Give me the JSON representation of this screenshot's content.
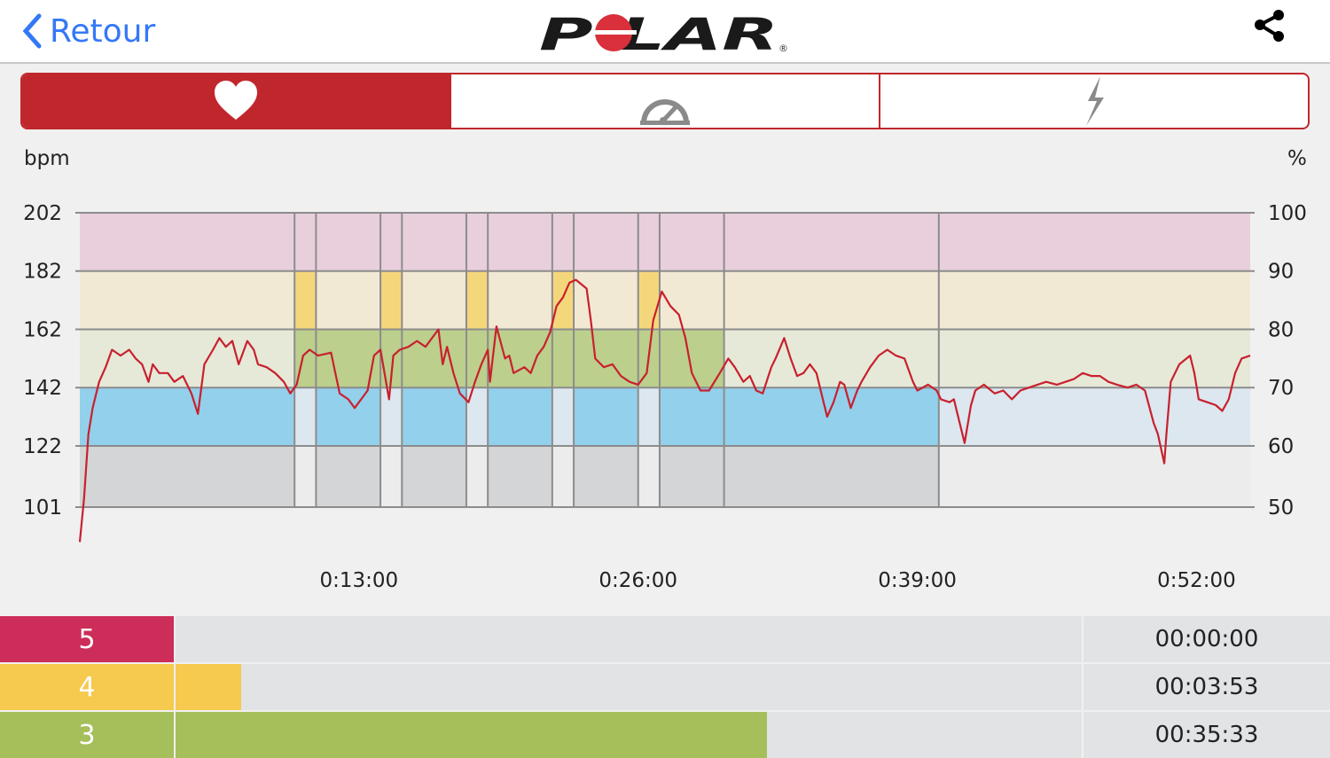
{
  "header": {
    "back_label": "Retour",
    "logo_text": "POLAR",
    "share_icon": "share-icon"
  },
  "tabs": [
    {
      "icon": "heart-icon",
      "active": true
    },
    {
      "icon": "speedometer-icon",
      "active": false
    },
    {
      "icon": "lightning-icon",
      "active": false
    }
  ],
  "colors": {
    "accent": "#c0272d",
    "back": "#3478f6",
    "line": "#c8202e"
  },
  "chart_data": {
    "type": "line",
    "ylabel_left": "bpm",
    "ylabel_right": "%",
    "yticks_left": [
      202,
      182,
      162,
      142,
      122,
      101
    ],
    "yticks_right": [
      100,
      90,
      80,
      70,
      60,
      50
    ],
    "ylim": [
      101,
      202
    ],
    "xlim": [
      0,
      54.5
    ],
    "xticks": [
      {
        "value": 13,
        "label": "0:13:00"
      },
      {
        "value": 26,
        "label": "0:26:00"
      },
      {
        "value": 39,
        "label": "0:39:00"
      },
      {
        "value": 52,
        "label": "0:52:00"
      }
    ],
    "zones": [
      {
        "zone": 1,
        "from": 101,
        "to": 122,
        "pale": "#ececec",
        "strong": "#d4d5d6"
      },
      {
        "zone": 2,
        "from": 122,
        "to": 142,
        "pale": "#dce7ef",
        "strong": "#93d0ec"
      },
      {
        "zone": 3,
        "from": 142,
        "to": 162,
        "pale": "#e6e9d8",
        "strong": "#bccf8c"
      },
      {
        "zone": 4,
        "from": 162,
        "to": 182,
        "pale": "#f2e9d4",
        "strong": "#f5d77b"
      },
      {
        "zone": 5,
        "from": 182,
        "to": 202,
        "pale": "#e8cfdb",
        "strong": "#e8cfdb"
      }
    ],
    "segments": [
      {
        "from": 0,
        "to": 10,
        "zones": [
          1,
          2
        ]
      },
      {
        "from": 10,
        "to": 11,
        "zones": [
          3,
          4
        ]
      },
      {
        "from": 11,
        "to": 14,
        "zones": [
          1,
          2,
          3
        ]
      },
      {
        "from": 14,
        "to": 15,
        "zones": [
          3,
          4
        ]
      },
      {
        "from": 15,
        "to": 18,
        "zones": [
          1,
          2,
          3
        ]
      },
      {
        "from": 18,
        "to": 19,
        "zones": [
          3,
          4
        ]
      },
      {
        "from": 19,
        "to": 22,
        "zones": [
          1,
          2,
          3
        ]
      },
      {
        "from": 22,
        "to": 23,
        "zones": [
          3,
          4
        ]
      },
      {
        "from": 23,
        "to": 26,
        "zones": [
          1,
          2,
          3
        ]
      },
      {
        "from": 26,
        "to": 27,
        "zones": [
          3,
          4
        ]
      },
      {
        "from": 27,
        "to": 30,
        "zones": [
          1,
          2,
          3
        ]
      },
      {
        "from": 30,
        "to": 40,
        "zones": [
          1,
          2
        ]
      },
      {
        "from": 40,
        "to": 54.5,
        "zones": []
      }
    ],
    "series": [
      {
        "points": [
          [
            0,
            89
          ],
          [
            0.2,
            104
          ],
          [
            0.4,
            126
          ],
          [
            0.6,
            135
          ],
          [
            0.9,
            144
          ],
          [
            1.2,
            149
          ],
          [
            1.5,
            155
          ],
          [
            1.9,
            153
          ],
          [
            2.3,
            155
          ],
          [
            2.6,
            152
          ],
          [
            2.9,
            150
          ],
          [
            3.2,
            144
          ],
          [
            3.4,
            150
          ],
          [
            3.7,
            147
          ],
          [
            4.1,
            147
          ],
          [
            4.4,
            144
          ],
          [
            4.8,
            146
          ],
          [
            5.2,
            140
          ],
          [
            5.5,
            133
          ],
          [
            5.8,
            150
          ],
          [
            6.2,
            155
          ],
          [
            6.5,
            159
          ],
          [
            6.8,
            156
          ],
          [
            7.1,
            158
          ],
          [
            7.4,
            150
          ],
          [
            7.8,
            158
          ],
          [
            8.1,
            155
          ],
          [
            8.3,
            150
          ],
          [
            8.7,
            149
          ],
          [
            9.1,
            147
          ],
          [
            9.5,
            144
          ],
          [
            9.8,
            140
          ],
          [
            10.1,
            143
          ],
          [
            10.4,
            153
          ],
          [
            10.7,
            155
          ],
          [
            11.1,
            153
          ],
          [
            11.7,
            154
          ],
          [
            11.9,
            147
          ],
          [
            12.1,
            140
          ],
          [
            12.5,
            138
          ],
          [
            12.8,
            135
          ],
          [
            13.1,
            138
          ],
          [
            13.4,
            141
          ],
          [
            13.7,
            153
          ],
          [
            14.0,
            155
          ],
          [
            14.4,
            138
          ],
          [
            14.6,
            153
          ],
          [
            14.9,
            155
          ],
          [
            15.3,
            156
          ],
          [
            15.7,
            158
          ],
          [
            16.1,
            156
          ],
          [
            16.7,
            162
          ],
          [
            16.9,
            150
          ],
          [
            17.1,
            156
          ],
          [
            17.4,
            147
          ],
          [
            17.7,
            140
          ],
          [
            18.1,
            137
          ],
          [
            18.4,
            144
          ],
          [
            18.7,
            150
          ],
          [
            19.0,
            155
          ],
          [
            19.1,
            144
          ],
          [
            19.4,
            163
          ],
          [
            19.8,
            152
          ],
          [
            20.0,
            153
          ],
          [
            20.2,
            147
          ],
          [
            20.7,
            149
          ],
          [
            21.0,
            147
          ],
          [
            21.3,
            153
          ],
          [
            21.6,
            156
          ],
          [
            21.9,
            161
          ],
          [
            22.2,
            170
          ],
          [
            22.5,
            173
          ],
          [
            22.8,
            178
          ],
          [
            23.1,
            179
          ],
          [
            23.6,
            176
          ],
          [
            23.8,
            165
          ],
          [
            24.0,
            152
          ],
          [
            24.4,
            149
          ],
          [
            24.8,
            150
          ],
          [
            25.2,
            146
          ],
          [
            25.6,
            144
          ],
          [
            26.0,
            143
          ],
          [
            26.4,
            147
          ],
          [
            26.7,
            165
          ],
          [
            27.1,
            175
          ],
          [
            27.5,
            170
          ],
          [
            27.9,
            167
          ],
          [
            28.2,
            159
          ],
          [
            28.5,
            147
          ],
          [
            28.9,
            141
          ],
          [
            29.3,
            141
          ],
          [
            29.8,
            147
          ],
          [
            30.2,
            152
          ],
          [
            30.5,
            149
          ],
          [
            30.9,
            144
          ],
          [
            31.2,
            146
          ],
          [
            31.5,
            141
          ],
          [
            31.8,
            140
          ],
          [
            32.2,
            149
          ],
          [
            32.4,
            152
          ],
          [
            32.8,
            159
          ],
          [
            33.1,
            152
          ],
          [
            33.4,
            146
          ],
          [
            33.7,
            147
          ],
          [
            34.0,
            150
          ],
          [
            34.3,
            147
          ],
          [
            34.5,
            141
          ],
          [
            34.8,
            132
          ],
          [
            35.1,
            137
          ],
          [
            35.4,
            144
          ],
          [
            35.6,
            143
          ],
          [
            35.9,
            135
          ],
          [
            36.2,
            141
          ],
          [
            36.4,
            144
          ],
          [
            36.8,
            149
          ],
          [
            37.2,
            153
          ],
          [
            37.6,
            155
          ],
          [
            38.0,
            153
          ],
          [
            38.4,
            152
          ],
          [
            38.8,
            144
          ],
          [
            39.0,
            141
          ],
          [
            39.5,
            143
          ],
          [
            39.9,
            141
          ],
          [
            40.1,
            138
          ],
          [
            40.5,
            137
          ],
          [
            40.7,
            138
          ],
          [
            41.2,
            123
          ],
          [
            41.5,
            136
          ],
          [
            41.7,
            141
          ],
          [
            42.1,
            143
          ],
          [
            42.6,
            140
          ],
          [
            43.0,
            141
          ],
          [
            43.4,
            138
          ],
          [
            43.8,
            141
          ],
          [
            44.2,
            142
          ],
          [
            44.6,
            143
          ],
          [
            45.0,
            144
          ],
          [
            45.5,
            143
          ],
          [
            45.9,
            144
          ],
          [
            46.3,
            145
          ],
          [
            46.7,
            147
          ],
          [
            47.1,
            146
          ],
          [
            47.5,
            146
          ],
          [
            47.9,
            144
          ],
          [
            48.3,
            143
          ],
          [
            48.8,
            142
          ],
          [
            49.2,
            143
          ],
          [
            49.6,
            141
          ],
          [
            50.0,
            130
          ],
          [
            50.2,
            126
          ],
          [
            50.5,
            116
          ],
          [
            50.6,
            126
          ],
          [
            50.8,
            144
          ],
          [
            51.2,
            150
          ],
          [
            51.7,
            153
          ],
          [
            51.9,
            147
          ],
          [
            52.1,
            138
          ],
          [
            52.5,
            137
          ],
          [
            52.9,
            136
          ],
          [
            53.2,
            134
          ],
          [
            53.5,
            138
          ],
          [
            53.8,
            147
          ],
          [
            54.1,
            152
          ],
          [
            54.5,
            153
          ]
        ]
      }
    ]
  },
  "zone_summary": [
    {
      "zone": "5",
      "time": "00:00:00",
      "fraction": 0.0,
      "color": "#cc2d59"
    },
    {
      "zone": "4",
      "time": "00:03:53",
      "fraction": 0.072,
      "color": "#f6c94f"
    },
    {
      "zone": "3",
      "time": "00:35:33",
      "fraction": 0.653,
      "color": "#a5bf5b"
    }
  ]
}
